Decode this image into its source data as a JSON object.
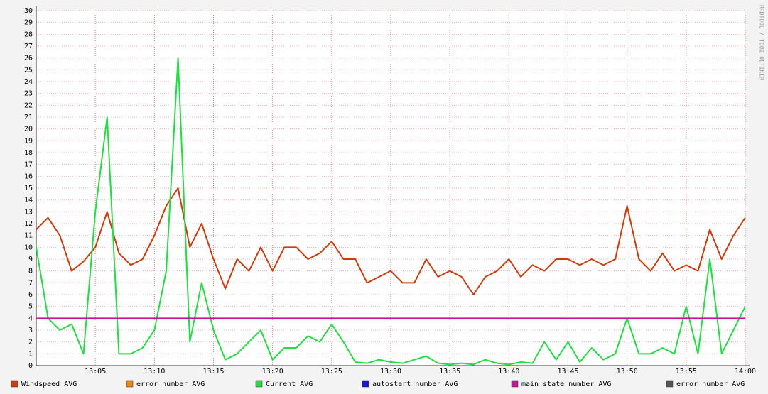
{
  "chart_data": {
    "type": "line",
    "watermark": "RRDTOOL / TOBI OETIKER",
    "x": [
      780,
      781,
      782,
      783,
      784,
      785,
      786,
      787,
      788,
      789,
      790,
      791,
      792,
      793,
      794,
      795,
      796,
      797,
      798,
      799,
      800,
      801,
      802,
      803,
      804,
      805,
      806,
      807,
      808,
      809,
      810,
      811,
      812,
      813,
      814,
      815,
      816,
      817,
      818,
      819,
      820,
      821,
      822,
      823,
      824,
      825,
      826,
      827,
      828,
      829,
      830,
      831,
      832,
      833,
      834,
      835,
      836,
      837,
      838,
      839,
      840
    ],
    "xlim": [
      780,
      840
    ],
    "xticks": [
      {
        "value": 785,
        "label": "13:05"
      },
      {
        "value": 790,
        "label": "13:10"
      },
      {
        "value": 795,
        "label": "13:15"
      },
      {
        "value": 800,
        "label": "13:20"
      },
      {
        "value": 805,
        "label": "13:25"
      },
      {
        "value": 810,
        "label": "13:30"
      },
      {
        "value": 815,
        "label": "13:35"
      },
      {
        "value": 820,
        "label": "13:40"
      },
      {
        "value": 825,
        "label": "13:45"
      },
      {
        "value": 830,
        "label": "13:50"
      },
      {
        "value": 835,
        "label": "13:55"
      },
      {
        "value": 840,
        "label": "14:00"
      }
    ],
    "ylim": [
      0,
      30
    ],
    "yticks": [
      0,
      1,
      2,
      3,
      4,
      5,
      6,
      7,
      8,
      9,
      10,
      11,
      12,
      13,
      14,
      15,
      16,
      17,
      18,
      19,
      20,
      21,
      22,
      23,
      24,
      25,
      26,
      27,
      28,
      29,
      30
    ],
    "grid": true,
    "series": [
      {
        "name": "Windspeed AVG",
        "color": "#cc3c0c",
        "values": [
          11.5,
          12.5,
          11,
          8,
          8.8,
          10,
          13,
          9.5,
          8.5,
          9,
          11,
          13.5,
          15,
          10,
          12,
          9,
          6.5,
          9,
          8,
          10,
          8,
          10,
          10,
          9,
          9.5,
          10.5,
          9,
          9,
          7,
          7.5,
          8,
          7,
          7,
          9,
          7.5,
          8,
          7.5,
          6,
          7.5,
          8,
          9,
          7.5,
          8.5,
          8,
          9,
          9,
          8.5,
          9,
          8.5,
          9,
          13.5,
          9,
          8,
          9.5,
          8,
          8.5,
          8,
          11.5,
          9,
          11,
          12.5
        ]
      },
      {
        "name": "error_number AVG",
        "color": "#e8850c",
        "values": [
          null,
          null,
          null,
          null,
          null,
          null,
          null,
          null,
          null,
          null,
          null,
          null,
          null,
          null,
          null,
          null,
          null,
          null,
          null,
          null,
          null,
          null,
          null,
          null,
          null,
          null,
          null,
          null,
          null,
          null,
          null,
          null,
          null,
          null,
          null,
          null,
          null,
          null,
          null,
          null,
          null,
          null,
          null,
          null,
          null,
          null,
          null,
          null,
          null,
          null,
          null,
          null,
          null,
          null,
          null,
          null,
          null,
          null,
          null,
          null,
          null
        ]
      },
      {
        "name": "Current AVG",
        "color": "#22dd44",
        "values": [
          10,
          4,
          3,
          3.5,
          1,
          13,
          21,
          1,
          1,
          1.5,
          3,
          8,
          26,
          2,
          7,
          3,
          0.5,
          1,
          2,
          3,
          0.5,
          1.5,
          1.5,
          2.5,
          2,
          3.5,
          2,
          0.3,
          0.2,
          0.5,
          0.3,
          0.2,
          0.5,
          0.8,
          0.2,
          0.1,
          0.2,
          0.1,
          0.5,
          0.2,
          0.1,
          0.3,
          0.2,
          2,
          0.5,
          2,
          0.3,
          1.5,
          0.5,
          1,
          4,
          1,
          1,
          1.5,
          1,
          5,
          1,
          9,
          1,
          3,
          5
        ]
      },
      {
        "name": "autostart_number AVG",
        "color": "#1a1acc",
        "values": [
          null,
          null,
          null,
          null,
          null,
          null,
          null,
          null,
          null,
          null,
          null,
          null,
          null,
          null,
          null,
          null,
          null,
          null,
          null,
          null,
          null,
          null,
          null,
          null,
          null,
          null,
          null,
          null,
          null,
          null,
          null,
          null,
          null,
          null,
          null,
          null,
          null,
          null,
          null,
          null,
          null,
          null,
          null,
          null,
          null,
          null,
          null,
          null,
          null,
          null,
          null,
          null,
          null,
          null,
          null,
          null,
          null,
          null,
          null,
          null,
          null
        ]
      },
      {
        "name": "main_state_number AVG",
        "color": "#cc1199",
        "values": [
          4,
          4,
          4,
          4,
          4,
          4,
          4,
          4,
          4,
          4,
          4,
          4,
          4,
          4,
          4,
          4,
          4,
          4,
          4,
          4,
          4,
          4,
          4,
          4,
          4,
          4,
          4,
          4,
          4,
          4,
          4,
          4,
          4,
          4,
          4,
          4,
          4,
          4,
          4,
          4,
          4,
          4,
          4,
          4,
          4,
          4,
          4,
          4,
          4,
          4,
          4,
          4,
          4,
          4,
          4,
          4,
          4,
          4,
          4,
          4,
          4
        ]
      },
      {
        "name": "error_number AVG",
        "color": "#555555",
        "values": [
          null,
          null,
          null,
          null,
          null,
          null,
          null,
          null,
          null,
          null,
          null,
          null,
          null,
          null,
          null,
          null,
          null,
          null,
          null,
          null,
          null,
          null,
          null,
          null,
          null,
          null,
          null,
          null,
          null,
          null,
          null,
          null,
          null,
          null,
          null,
          null,
          null,
          null,
          null,
          null,
          null,
          null,
          null,
          null,
          null,
          null,
          null,
          null,
          null,
          null,
          null,
          null,
          null,
          null,
          null,
          null,
          null,
          null,
          null,
          null,
          null
        ]
      }
    ]
  }
}
